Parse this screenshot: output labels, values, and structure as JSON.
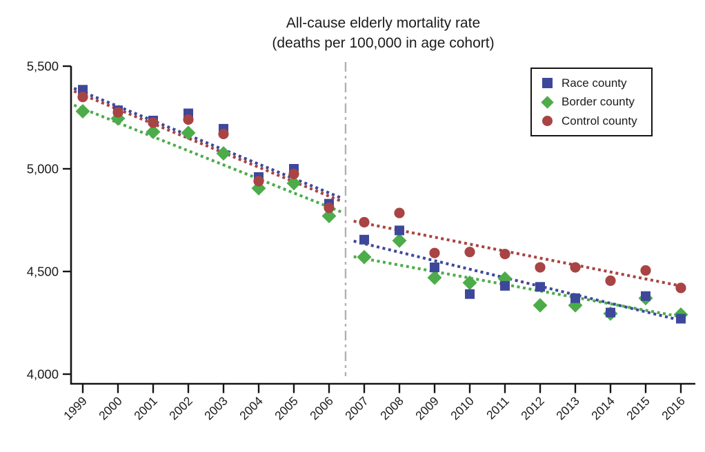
{
  "chart_data": {
    "type": "scatter",
    "title": "All-cause elderly mortality rate",
    "subtitle": "(deaths per 100,000 in age cohort)",
    "xlabel": "",
    "ylabel": "",
    "x_years": [
      1999,
      2000,
      2001,
      2002,
      2003,
      2004,
      2005,
      2006,
      2007,
      2008,
      2009,
      2010,
      2011,
      2012,
      2013,
      2014,
      2015,
      2016
    ],
    "y_ticks": [
      {
        "value": 5500,
        "label": "5,500"
      },
      {
        "value": 5000,
        "label": "5,000"
      },
      {
        "value": 4500,
        "label": "4,500"
      },
      {
        "value": 4000,
        "label": "4,000"
      }
    ],
    "ylim": [
      3950,
      5500
    ],
    "grid": false,
    "legend_position": "top-right",
    "series": [
      {
        "id": "race",
        "name": "Race county",
        "marker": "square",
        "color": "#3E489B",
        "values": [
          5385,
          5285,
          5235,
          5270,
          5195,
          4960,
          5000,
          4830,
          4655,
          4700,
          4520,
          4390,
          4430,
          4425,
          4370,
          4300,
          4380,
          4270
        ]
      },
      {
        "id": "border",
        "name": "Border county",
        "marker": "diamond",
        "color": "#4CAC4A",
        "values": [
          5280,
          5245,
          5180,
          5175,
          5075,
          4905,
          4930,
          4770,
          4570,
          4650,
          4470,
          4445,
          4465,
          4335,
          4335,
          4295,
          4370,
          4290
        ]
      },
      {
        "id": "control",
        "name": "Control county",
        "marker": "circle",
        "color": "#A84443",
        "values": [
          5350,
          5275,
          5225,
          5240,
          5170,
          4940,
          4975,
          4810,
          4740,
          4785,
          4590,
          4595,
          4585,
          4520,
          4520,
          4455,
          4505,
          4420
        ]
      }
    ],
    "trend_lines": [
      {
        "series": "border",
        "period": "pre",
        "x1": 1998.75,
        "y1": 5310,
        "x2": 2006.35,
        "y2": 4790
      },
      {
        "series": "border",
        "period": "post",
        "x1": 2006.7,
        "y1": 4572,
        "x2": 2016.05,
        "y2": 4278
      },
      {
        "series": "control",
        "period": "pre",
        "x1": 1998.75,
        "y1": 5378,
        "x2": 2006.35,
        "y2": 4842
      },
      {
        "series": "control",
        "period": "post",
        "x1": 2006.7,
        "y1": 4745,
        "x2": 2016.05,
        "y2": 4428
      },
      {
        "series": "race",
        "period": "pre",
        "x1": 1998.75,
        "y1": 5392,
        "x2": 2006.35,
        "y2": 4858
      },
      {
        "series": "race",
        "period": "post",
        "x1": 2006.7,
        "y1": 4648,
        "x2": 2016.05,
        "y2": 4260
      }
    ],
    "reference_line": {
      "x": 2006.47,
      "style": "dash-dot",
      "color": "#b1b1b4"
    },
    "axis_color": "#141414"
  }
}
